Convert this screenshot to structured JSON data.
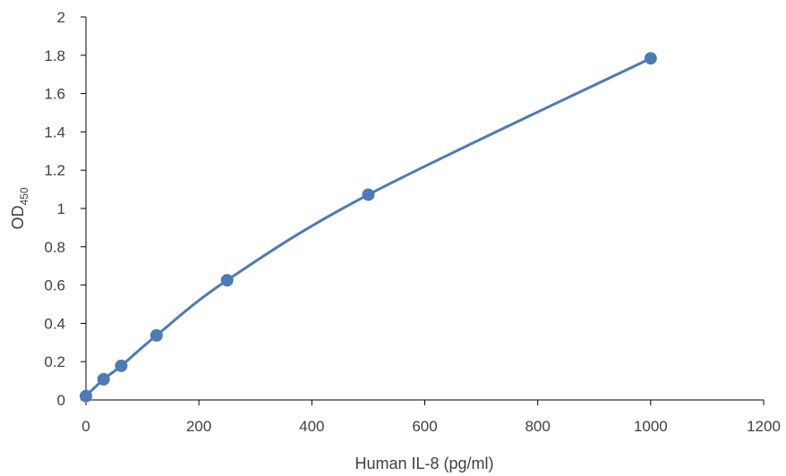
{
  "chart_data": {
    "type": "scatter",
    "title": "",
    "xlabel": "Human IL-8 (pg/ml)",
    "ylabel_main": "OD",
    "ylabel_subscript": "450",
    "xlim": [
      0,
      1200
    ],
    "ylim": [
      0,
      2
    ],
    "x_ticks": [
      "0",
      "200",
      "400",
      "600",
      "800",
      "1000",
      "1200"
    ],
    "y_ticks": [
      "0",
      "0.2",
      "0.4",
      "0.6",
      "0.8",
      "1",
      "1.2",
      "1.4",
      "1.6",
      "1.8",
      "2"
    ],
    "grid": false,
    "series": [
      {
        "color": "#4E7AB5",
        "line": "smooth",
        "points": [
          {
            "x": 0,
            "y": 0.02
          },
          {
            "x": 31.25,
            "y": 0.108
          },
          {
            "x": 62.5,
            "y": 0.178
          },
          {
            "x": 125,
            "y": 0.337
          },
          {
            "x": 250,
            "y": 0.625
          },
          {
            "x": 500,
            "y": 1.072
          },
          {
            "x": 1000,
            "y": 1.784
          }
        ]
      }
    ]
  }
}
